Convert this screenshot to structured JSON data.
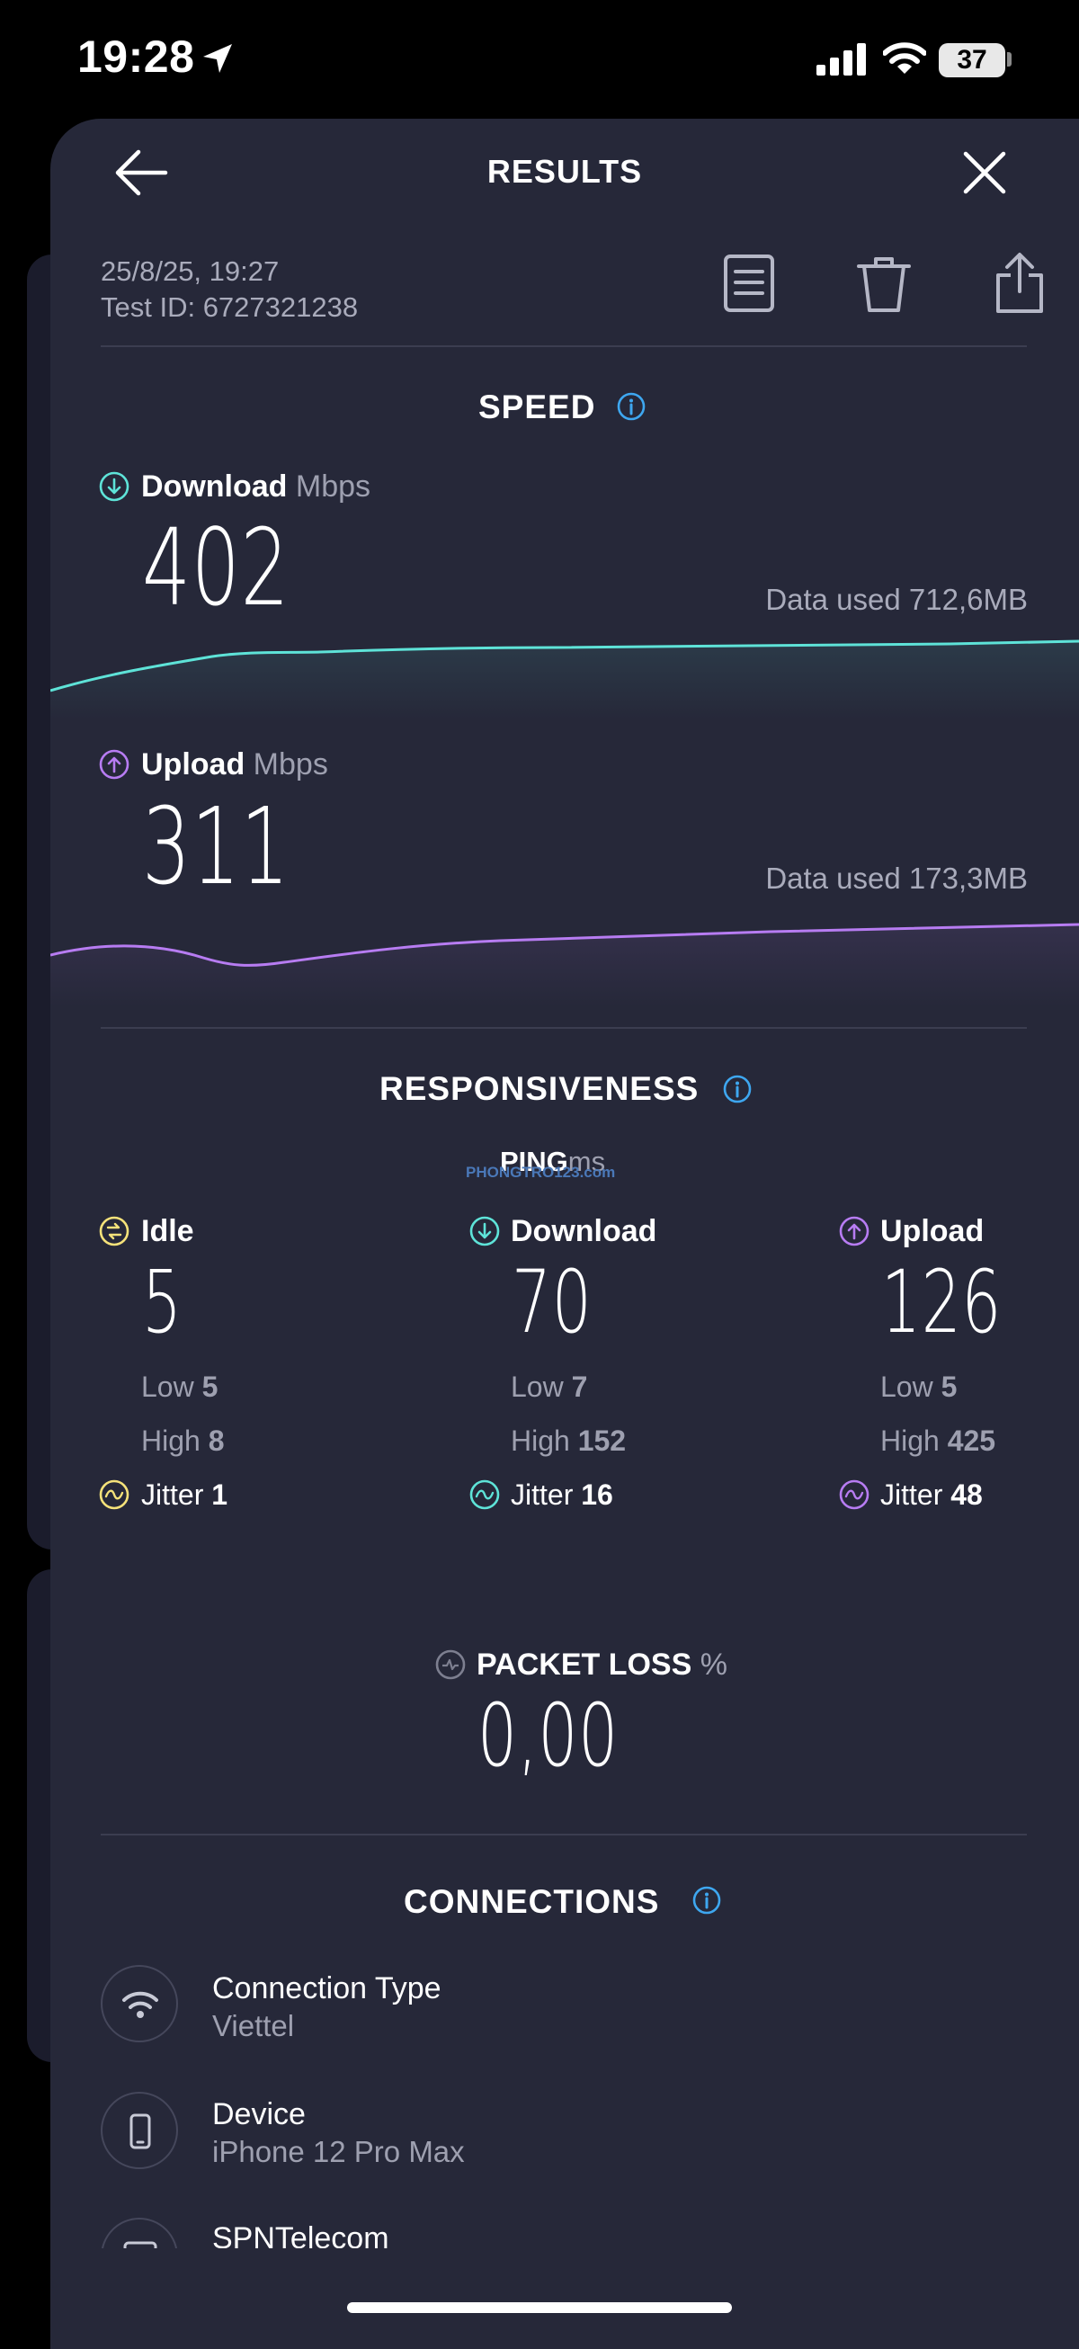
{
  "status_bar": {
    "time": "19:28",
    "battery": "37"
  },
  "header": {
    "title": "RESULTS"
  },
  "meta": {
    "date": "25/8/25, 19:27",
    "test_id": "Test ID: 6727321238"
  },
  "speed": {
    "title": "SPEED",
    "download": {
      "label": "Download",
      "unit": "Mbps",
      "value": "402",
      "data_used": "Data used 712,6MB"
    },
    "upload": {
      "label": "Upload",
      "unit": "Mbps",
      "value": "311",
      "data_used": "Data used 173,3MB"
    }
  },
  "responsiveness": {
    "title": "RESPONSIVENESS",
    "ping_label": "PING",
    "ping_unit": "ms",
    "watermark": "PHONGTRO123.com",
    "idle": {
      "label": "Idle",
      "value": "5",
      "low_label": "Low",
      "low": "5",
      "high_label": "High",
      "high": "8",
      "jitter_label": "Jitter",
      "jitter": "1"
    },
    "download": {
      "label": "Download",
      "value": "70",
      "low_label": "Low",
      "low": "7",
      "high_label": "High",
      "high": "152",
      "jitter_label": "Jitter",
      "jitter": "16"
    },
    "upload": {
      "label": "Upload",
      "value": "126",
      "low_label": "Low",
      "low": "5",
      "high_label": "High",
      "high": "425",
      "jitter_label": "Jitter",
      "jitter": "48"
    }
  },
  "packet_loss": {
    "label": "PACKET LOSS",
    "unit": "%",
    "value": "0,00"
  },
  "connections": {
    "title": "CONNECTIONS",
    "items": [
      {
        "title": "Connection Type",
        "subtitle": "Viettel",
        "icon": "wifi-icon"
      },
      {
        "title": "Device",
        "subtitle": "iPhone 12 Pro Max",
        "icon": "phone-icon"
      },
      {
        "title": "SPNTelecom",
        "subtitle": "",
        "icon": "server-icon"
      }
    ]
  },
  "colors": {
    "download": "#5ee3d8",
    "upload": "#b77cf2",
    "idle": "#f5e27a",
    "info": "#3ea7f0",
    "background": "#262839"
  }
}
